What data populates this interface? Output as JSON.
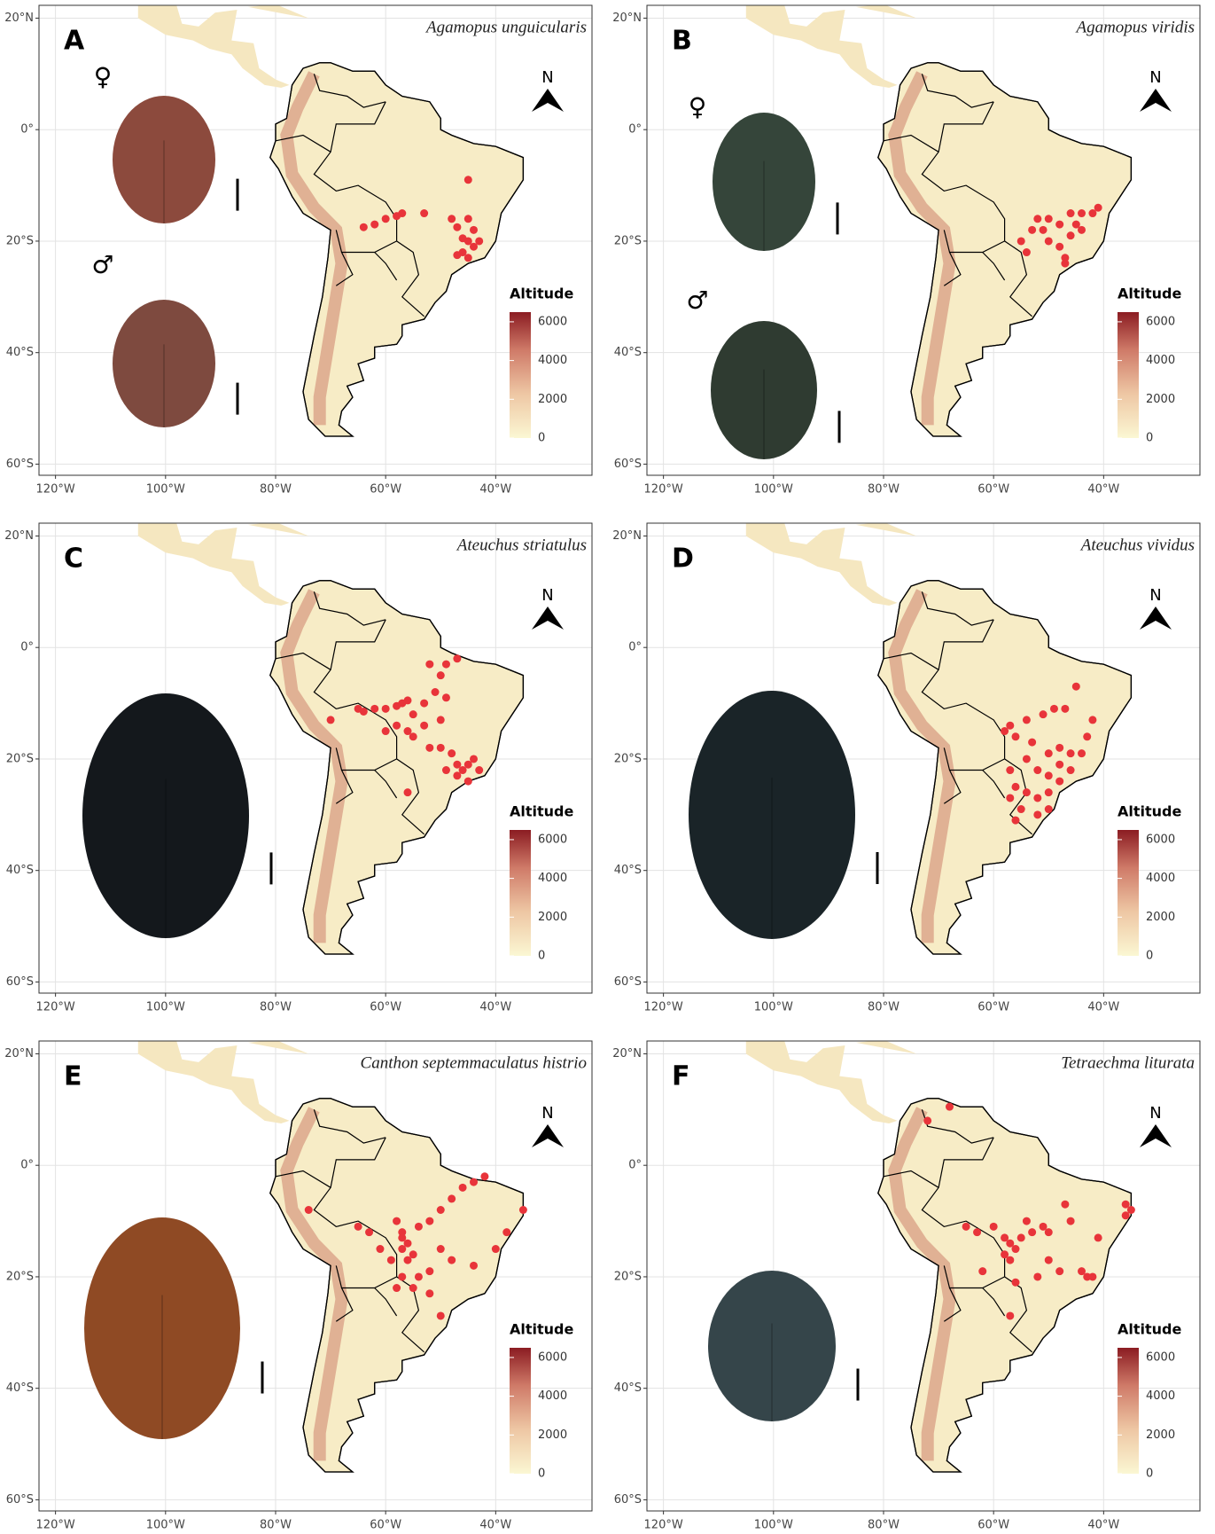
{
  "chart_data": [
    {
      "type": "scatter",
      "panel": "A",
      "title": "Agamopus unguicularis",
      "sex_labels": [
        "♀",
        "♂"
      ],
      "north": "N",
      "legend_title": "Altitude",
      "legend_lim": [
        0,
        6500
      ],
      "legend_ticks": [
        0,
        2000,
        4000,
        6000
      ],
      "xlim": [
        -123,
        -22.5
      ],
      "ylim": [
        -62,
        22.3
      ],
      "xticks": [
        {
          "value": -120,
          "label": "120°W"
        },
        {
          "value": -100,
          "label": "100°W"
        },
        {
          "value": -80,
          "label": "80°W"
        },
        {
          "value": -60,
          "label": "60°W"
        },
        {
          "value": -40,
          "label": "40°W"
        }
      ],
      "yticks": [
        {
          "value": -60,
          "label": "60°S"
        },
        {
          "value": -40,
          "label": "40°S"
        },
        {
          "value": -20,
          "label": "20°S"
        },
        {
          "value": 0,
          "label": "0°"
        },
        {
          "value": 20,
          "label": "20°N"
        }
      ],
      "color": "#e8343a",
      "x": [
        -45,
        -64,
        -62,
        -60,
        -58,
        -57,
        -53,
        -48,
        -45,
        -47,
        -44,
        -45,
        -43,
        -46,
        -44,
        -46,
        -45,
        -47
      ],
      "y": [
        -9,
        -17.5,
        -17,
        -16,
        -15.5,
        -15,
        -15,
        -16,
        -16,
        -17.5,
        -18,
        -20,
        -20,
        -19.5,
        -21,
        -22,
        -23,
        -22.5
      ]
    },
    {
      "type": "scatter",
      "panel": "B",
      "title": "Agamopus viridis",
      "sex_labels": [
        "♀",
        "♂"
      ],
      "north": "N",
      "legend_title": "Altitude",
      "legend_lim": [
        0,
        6500
      ],
      "legend_ticks": [
        0,
        2000,
        4000,
        6000
      ],
      "xlim": [
        -123,
        -22.5
      ],
      "ylim": [
        -62,
        22.3
      ],
      "xticks": [
        {
          "value": -120,
          "label": "120°W"
        },
        {
          "value": -100,
          "label": "100°W"
        },
        {
          "value": -80,
          "label": "80°W"
        },
        {
          "value": -60,
          "label": "60°W"
        },
        {
          "value": -40,
          "label": "40°W"
        }
      ],
      "yticks": [
        {
          "value": -60,
          "label": "60°S"
        },
        {
          "value": -40,
          "label": "40°S"
        },
        {
          "value": -20,
          "label": "20°S"
        },
        {
          "value": 0,
          "label": "0°"
        },
        {
          "value": 20,
          "label": "20°N"
        }
      ],
      "color": "#e8343a",
      "x": [
        -41,
        -42,
        -44,
        -45,
        -46,
        -48,
        -50,
        -52,
        -53,
        -51,
        -55,
        -54,
        -48,
        -47,
        -47,
        -44,
        -46,
        -50
      ],
      "y": [
        -14,
        -15,
        -15,
        -17,
        -15,
        -17,
        -16,
        -16,
        -18,
        -18,
        -20,
        -22,
        -21,
        -23,
        -24,
        -18,
        -19,
        -20
      ]
    },
    {
      "type": "scatter",
      "panel": "C",
      "title": "Ateuchus striatulus",
      "north": "N",
      "legend_title": "Altitude",
      "legend_lim": [
        0,
        6500
      ],
      "legend_ticks": [
        0,
        2000,
        4000,
        6000
      ],
      "xlim": [
        -123,
        -22.5
      ],
      "ylim": [
        -62,
        22.3
      ],
      "xticks": [
        {
          "value": -120,
          "label": "120°W"
        },
        {
          "value": -100,
          "label": "100°W"
        },
        {
          "value": -80,
          "label": "80°W"
        },
        {
          "value": -60,
          "label": "60°W"
        },
        {
          "value": -40,
          "label": "40°W"
        }
      ],
      "yticks": [
        {
          "value": -60,
          "label": "60°S"
        },
        {
          "value": -40,
          "label": "40°S"
        },
        {
          "value": -20,
          "label": "20°S"
        },
        {
          "value": 0,
          "label": "0°"
        },
        {
          "value": 20,
          "label": "20°N"
        }
      ],
      "color": "#e8343a",
      "x": [
        -65,
        -64,
        -62,
        -60,
        -58,
        -57,
        -56,
        -55,
        -53,
        -51,
        -50,
        -49,
        -47,
        -52,
        -60,
        -58,
        -56,
        -55,
        -53,
        -52,
        -50,
        -48,
        -47,
        -46,
        -45,
        -44,
        -43,
        -47,
        -49,
        -45,
        -70,
        -56,
        -50,
        -49
      ],
      "y": [
        -11,
        -11.5,
        -11,
        -11,
        -10.5,
        -10,
        -9.5,
        -12,
        -10,
        -8,
        -5,
        -3,
        -2,
        -3,
        -15,
        -14,
        -15,
        -16,
        -14,
        -18,
        -18,
        -19,
        -21,
        -22,
        -21,
        -20,
        -22,
        -23,
        -22,
        -24,
        -13,
        -26,
        -13,
        -9
      ]
    },
    {
      "type": "scatter",
      "panel": "D",
      "title": "Ateuchus vividus",
      "north": "N",
      "legend_title": "Altitude",
      "legend_lim": [
        0,
        6500
      ],
      "legend_ticks": [
        0,
        2000,
        4000,
        6000
      ],
      "xlim": [
        -123,
        -22.5
      ],
      "ylim": [
        -62,
        22.3
      ],
      "xticks": [
        {
          "value": -120,
          "label": "120°W"
        },
        {
          "value": -100,
          "label": "100°W"
        },
        {
          "value": -80,
          "label": "80°W"
        },
        {
          "value": -60,
          "label": "60°W"
        },
        {
          "value": -40,
          "label": "40°W"
        }
      ],
      "yticks": [
        {
          "value": -60,
          "label": "60°S"
        },
        {
          "value": -40,
          "label": "40°S"
        },
        {
          "value": -20,
          "label": "20°S"
        },
        {
          "value": 0,
          "label": "0°"
        },
        {
          "value": 20,
          "label": "20°N"
        }
      ],
      "color": "#e8343a",
      "x": [
        -45,
        -47,
        -49,
        -51,
        -54,
        -57,
        -58,
        -56,
        -53,
        -50,
        -48,
        -46,
        -44,
        -43,
        -42,
        -54,
        -52,
        -50,
        -48,
        -46,
        -57,
        -56,
        -57,
        -54,
        -52,
        -50,
        -55,
        -52,
        -50,
        -56,
        -48
      ],
      "y": [
        -7,
        -11,
        -11,
        -12,
        -13,
        -14,
        -15,
        -16,
        -17,
        -19,
        -18,
        -19,
        -19,
        -16,
        -13,
        -20,
        -22,
        -23,
        -24,
        -22,
        -22,
        -25,
        -27,
        -26,
        -27,
        -26,
        -29,
        -30,
        -29,
        -31,
        -21
      ]
    },
    {
      "type": "scatter",
      "panel": "E",
      "title": "Canthon septemmaculatus histrio",
      "north": "N",
      "legend_title": "Altitude",
      "legend_lim": [
        0,
        6500
      ],
      "legend_ticks": [
        0,
        2000,
        4000,
        6000
      ],
      "xlim": [
        -123,
        -22.5
      ],
      "ylim": [
        -62,
        22.3
      ],
      "xticks": [
        {
          "value": -120,
          "label": "120°W"
        },
        {
          "value": -100,
          "label": "100°W"
        },
        {
          "value": -80,
          "label": "80°W"
        },
        {
          "value": -60,
          "label": "60°W"
        },
        {
          "value": -40,
          "label": "40°W"
        }
      ],
      "yticks": [
        {
          "value": -60,
          "label": "60°S"
        },
        {
          "value": -40,
          "label": "40°S"
        },
        {
          "value": -20,
          "label": "20°S"
        },
        {
          "value": 0,
          "label": "0°"
        },
        {
          "value": 20,
          "label": "20°N"
        }
      ],
      "color": "#e8343a",
      "x": [
        -74,
        -65,
        -63,
        -58,
        -57,
        -56,
        -57,
        -55,
        -56,
        -57,
        -54,
        -52,
        -50,
        -48,
        -46,
        -44,
        -42,
        -35,
        -38,
        -40,
        -44,
        -48,
        -50,
        -52,
        -54,
        -57,
        -58,
        -55,
        -52,
        -50,
        -59,
        -61
      ],
      "y": [
        -8,
        -11,
        -12,
        -10,
        -13,
        -14,
        -15,
        -16,
        -17,
        -12,
        -11,
        -10,
        -8,
        -6,
        -4,
        -3,
        -2,
        -8,
        -12,
        -15,
        -18,
        -17,
        -15,
        -19,
        -20,
        -20,
        -22,
        -22,
        -23,
        -27,
        -17,
        -15
      ]
    },
    {
      "type": "scatter",
      "panel": "F",
      "title": "Tetraechma liturata",
      "north": "N",
      "legend_title": "Altitude",
      "legend_lim": [
        0,
        6500
      ],
      "legend_ticks": [
        0,
        2000,
        4000,
        6000
      ],
      "xlim": [
        -123,
        -22.5
      ],
      "ylim": [
        -62,
        22.3
      ],
      "xticks": [
        {
          "value": -120,
          "label": "120°W"
        },
        {
          "value": -100,
          "label": "100°W"
        },
        {
          "value": -80,
          "label": "80°W"
        },
        {
          "value": -60,
          "label": "60°W"
        },
        {
          "value": -40,
          "label": "40°W"
        }
      ],
      "yticks": [
        {
          "value": -60,
          "label": "60°S"
        },
        {
          "value": -40,
          "label": "40°S"
        },
        {
          "value": -20,
          "label": "20°S"
        },
        {
          "value": 0,
          "label": "0°"
        },
        {
          "value": 20,
          "label": "20°N"
        }
      ],
      "color": "#e8343a",
      "x": [
        -72,
        -68,
        -65,
        -63,
        -60,
        -58,
        -57,
        -56,
        -58,
        -57,
        -55,
        -53,
        -51,
        -54,
        -50,
        -47,
        -46,
        -50,
        -48,
        -52,
        -56,
        -62,
        -57,
        -44,
        -43,
        -42,
        -36,
        -35,
        -36,
        -41
      ],
      "y": [
        8,
        10.5,
        -11,
        -12,
        -11,
        -13,
        -14,
        -15,
        -16,
        -17,
        -13,
        -12,
        -11,
        -10,
        -12,
        -7,
        -10,
        -17,
        -19,
        -20,
        -21,
        -19,
        -27,
        -19,
        -20,
        -20,
        -7,
        -8,
        -9,
        -13
      ]
    }
  ]
}
